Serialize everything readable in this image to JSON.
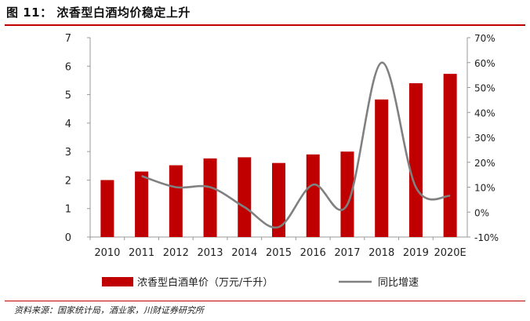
{
  "figure": {
    "title": "图 11： 浓香型白酒均价稳定上升",
    "source": "资料来源：国家统计局，酒业家，川财证券研究所",
    "accent_color": "#c00000"
  },
  "chart_data": {
    "type": "bar",
    "categories": [
      "2010",
      "2011",
      "2012",
      "2013",
      "2014",
      "2015",
      "2016",
      "2017",
      "2018",
      "2019",
      "2020E"
    ],
    "series": [
      {
        "name": "浓香型白酒单价（万元/千升）",
        "kind": "bar",
        "axis": "left",
        "color": "#c00000",
        "values": [
          2.0,
          2.3,
          2.52,
          2.76,
          2.8,
          2.6,
          2.9,
          3.0,
          4.83,
          5.4,
          5.73
        ]
      },
      {
        "name": "同比增速",
        "kind": "line",
        "axis": "right",
        "color": "#808080",
        "values": [
          null,
          14.5,
          10,
          10,
          2,
          -6,
          11,
          3,
          60,
          10,
          6.5
        ]
      }
    ],
    "y_left": {
      "min": 0,
      "max": 7,
      "ticks": [
        "0",
        "1",
        "2",
        "3",
        "4",
        "5",
        "6",
        "7"
      ]
    },
    "y_right": {
      "min": -10,
      "max": 70,
      "ticks": [
        "-10%",
        "0%",
        "10%",
        "20%",
        "30%",
        "40%",
        "50%",
        "60%",
        "70%"
      ]
    },
    "grid": false,
    "legend_position": "bottom"
  }
}
